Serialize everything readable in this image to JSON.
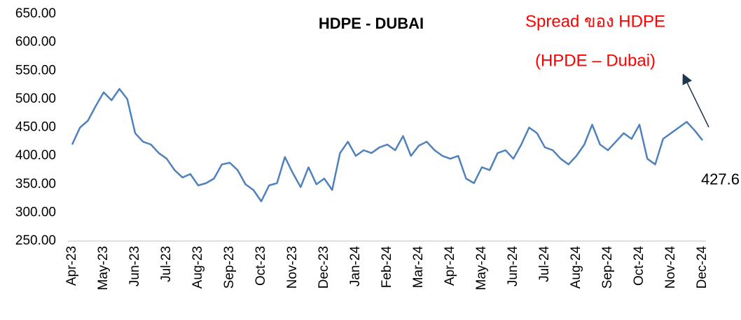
{
  "chart_data": {
    "type": "line",
    "title": "HDPE - DUBAI",
    "annotations": [
      {
        "text": "Spread ของ HDPE"
      },
      {
        "text": "(HPDE – Dubai)"
      },
      {
        "text": "427.6"
      }
    ],
    "categories": [
      "Apr-23",
      null,
      null,
      null,
      "May-23",
      null,
      null,
      null,
      "Jun-23",
      null,
      null,
      null,
      "Jul-23",
      null,
      null,
      null,
      "Aug-23",
      null,
      null,
      null,
      "Sep-23",
      null,
      null,
      null,
      "Oct-23",
      null,
      null,
      null,
      "Nov-23",
      null,
      null,
      null,
      "Dec-23",
      null,
      null,
      null,
      "Jan-24",
      null,
      null,
      null,
      "Feb-24",
      null,
      null,
      null,
      "Mar-24",
      null,
      null,
      null,
      "Apr-24",
      null,
      null,
      null,
      "May-24",
      null,
      null,
      null,
      "Jun-24",
      null,
      null,
      null,
      "Jul-24",
      null,
      null,
      null,
      "Aug-24",
      null,
      null,
      null,
      "Sep-24",
      null,
      null,
      null,
      "Oct-24",
      null,
      null,
      null,
      "Nov-24",
      null,
      null,
      null,
      "Dec-24"
    ],
    "series": [
      {
        "name": "HDPE - DUBAI",
        "color": "#4f81bd",
        "values": [
          420,
          450,
          462,
          488,
          512,
          498,
          518,
          500,
          440,
          425,
          420,
          405,
          395,
          375,
          362,
          368,
          348,
          352,
          360,
          385,
          388,
          375,
          350,
          340,
          320,
          348,
          352,
          398,
          370,
          345,
          380,
          350,
          360,
          340,
          405,
          425,
          400,
          410,
          405,
          415,
          420,
          410,
          435,
          400,
          418,
          425,
          410,
          400,
          395,
          400,
          360,
          352,
          380,
          375,
          405,
          410,
          395,
          420,
          450,
          440,
          415,
          410,
          395,
          385,
          400,
          420,
          455,
          420,
          410,
          425,
          440,
          430,
          455,
          395,
          385,
          430,
          440,
          450,
          460,
          445,
          427.6
        ]
      }
    ],
    "ylim": [
      250,
      650
    ],
    "yticks": [
      {
        "value": 250,
        "label": "250.00"
      },
      {
        "value": 300,
        "label": "300.00"
      },
      {
        "value": 350,
        "label": "350.00"
      },
      {
        "value": 400,
        "label": "400.00"
      },
      {
        "value": 450,
        "label": "450.00"
      },
      {
        "value": 500,
        "label": "500.00"
      },
      {
        "value": 550,
        "label": "550.00"
      },
      {
        "value": 600,
        "label": "600.00"
      },
      {
        "value": 650,
        "label": "650.00"
      }
    ],
    "grid": false
  }
}
